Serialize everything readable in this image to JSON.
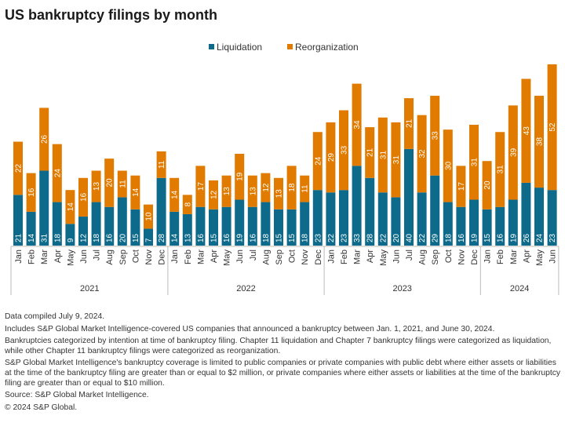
{
  "chart_data": {
    "type": "bar",
    "stacked": true,
    "title": "US bankruptcy filings by month",
    "xlabel": "",
    "ylabel": "",
    "legend_position": "top",
    "grid": false,
    "years": [
      {
        "label": "2021",
        "months": [
          "Jan",
          "Feb",
          "Mar",
          "Apr",
          "May",
          "Jun",
          "Jul",
          "Aug",
          "Sep",
          "Oct",
          "Nov",
          "Dec"
        ]
      },
      {
        "label": "2022",
        "months": [
          "Jan",
          "Feb",
          "Mar",
          "Apr",
          "May",
          "Jun",
          "Jul",
          "Aug",
          "Sep",
          "Oct",
          "Nov",
          "Dec"
        ]
      },
      {
        "label": "2023",
        "months": [
          "Jan",
          "Feb",
          "Mar",
          "Apr",
          "May",
          "Jun",
          "Jul",
          "Aug",
          "Sep",
          "Oct",
          "Nov",
          "Dec"
        ]
      },
      {
        "label": "2024",
        "months": [
          "Jan",
          "Feb",
          "Mar",
          "Apr",
          "May",
          "Jun"
        ]
      }
    ],
    "series": [
      {
        "name": "Liquidation",
        "color": "#0e6a8a",
        "values": [
          21,
          14,
          31,
          18,
          9,
          12,
          18,
          16,
          20,
          15,
          7,
          28,
          14,
          13,
          16,
          15,
          16,
          19,
          16,
          18,
          15,
          15,
          18,
          23,
          22,
          23,
          33,
          28,
          22,
          20,
          40,
          22,
          29,
          18,
          16,
          19,
          15,
          16,
          19,
          26,
          24,
          23
        ]
      },
      {
        "name": "Reorganization",
        "color": "#e07b00",
        "values": [
          22,
          16,
          26,
          24,
          14,
          16,
          13,
          20,
          11,
          14,
          10,
          11,
          14,
          8,
          17,
          12,
          13,
          19,
          13,
          12,
          13,
          18,
          11,
          24,
          29,
          33,
          34,
          21,
          31,
          31,
          21,
          32,
          33,
          30,
          17,
          31,
          20,
          31,
          39,
          43,
          38,
          52
        ]
      }
    ]
  },
  "notes": [
    "Data compiled July 9, 2024.",
    "Includes S&P Global Market Intelligence-covered US companies that announced a bankruptcy between Jan. 1, 2021, and June 30, 2024.",
    "Bankruptcies categorized by intention at time of bankruptcy filing. Chapter 11 liquidation and Chapter 7 bankruptcy filings were categorized as liquidation, while other Chapter 11 bankruptcy filings were categorized as reorganization.",
    "S&P Global Market Intelligence's bankruptcy coverage is limited to public companies or private companies with public debt where either assets or liabilities at the time of the bankruptcy filing are greater than or equal to $2 million, or private companies where either assets or liabilities at the time of the bankruptcy filing are greater than or equal to $10 million.",
    "Source: S&P Global Market Intelligence.",
    "© 2024 S&P Global."
  ]
}
